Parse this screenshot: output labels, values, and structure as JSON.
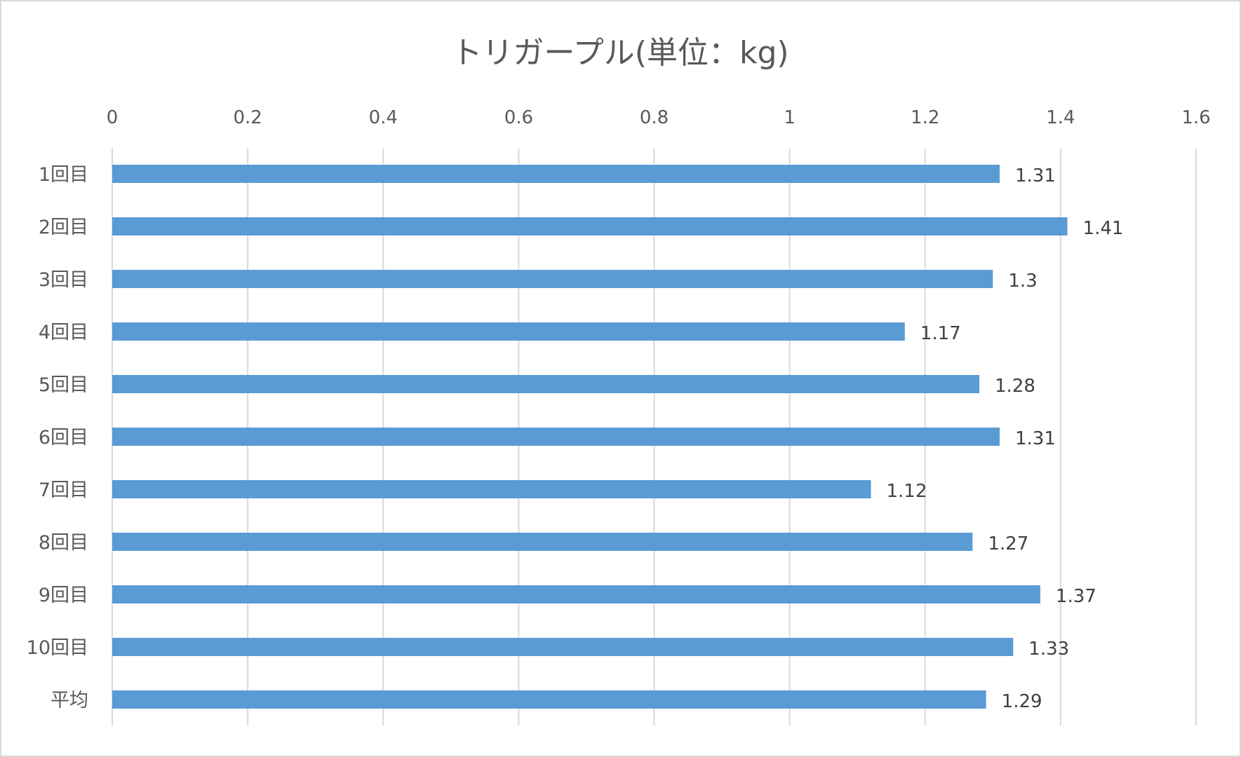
{
  "chart_data": {
    "type": "bar",
    "orientation": "horizontal",
    "title": "トリガープル(単位：kg)",
    "xlabel": "",
    "ylabel": "",
    "xlim": [
      0,
      1.6
    ],
    "xticks": [
      "0",
      "0.2",
      "0.4",
      "0.6",
      "0.8",
      "1",
      "1.2",
      "1.4",
      "1.6"
    ],
    "xtick_values": [
      0,
      0.2,
      0.4,
      0.6,
      0.8,
      1,
      1.2,
      1.4,
      1.6
    ],
    "axis_position": "top",
    "grid": true,
    "legend": "none",
    "categories": [
      "1回目",
      "2回目",
      "3回目",
      "4回目",
      "5回目",
      "6回目",
      "7回目",
      "8回目",
      "9回目",
      "10回目",
      "平均"
    ],
    "values": [
      1.31,
      1.41,
      1.3,
      1.17,
      1.28,
      1.31,
      1.12,
      1.27,
      1.37,
      1.33,
      1.29
    ],
    "data_labels": [
      "1.31",
      "1.41",
      "1.3",
      "1.17",
      "1.28",
      "1.31",
      "1.12",
      "1.27",
      "1.37",
      "1.33",
      "1.29"
    ],
    "bar_color": "#5b9bd5",
    "grid_color": "#d9d9d9"
  }
}
